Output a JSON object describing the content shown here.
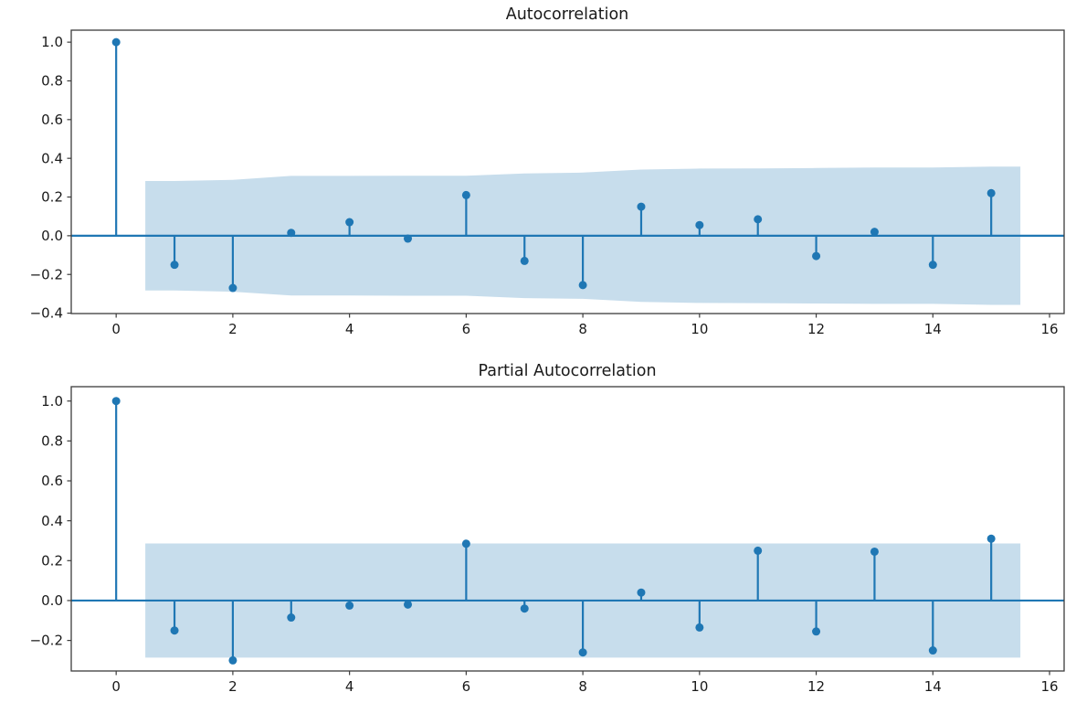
{
  "figure": {
    "kind": "statsmodels ACF/PACF stem plots, 2 stacked subplots"
  },
  "style": {
    "background": "#ffffff",
    "stem_color": "#1f77b4",
    "marker_color": "#1f77b4",
    "zero_line_color": "#1f77b4",
    "band_fill": "rgba(31,119,180,0.25)",
    "spine_color": "#3c3c3c",
    "tick_color": "#3c3c3c",
    "text_color": "#1a1a1a"
  },
  "chart_data": [
    {
      "type": "stem",
      "title": "Autocorrelation",
      "xlabel": "",
      "ylabel": "",
      "grid": false,
      "legend": null,
      "x": [
        0,
        1,
        2,
        3,
        4,
        5,
        6,
        7,
        8,
        9,
        10,
        11,
        12,
        13,
        14,
        15
      ],
      "values": [
        1.0,
        -0.15,
        -0.27,
        0.015,
        0.07,
        -0.015,
        0.21,
        -0.13,
        -0.255,
        0.15,
        0.055,
        0.085,
        -0.105,
        0.02,
        -0.15,
        0.22
      ],
      "conf_band": {
        "note": "shaded confidence interval, symmetric about zero, widens with lag",
        "x": [
          0.5,
          1,
          2,
          3,
          4,
          5,
          6,
          7,
          8,
          9,
          10,
          11,
          12,
          13,
          14,
          15,
          15.5
        ],
        "upper": [
          0.283,
          0.283,
          0.289,
          0.309,
          0.309,
          0.31,
          0.31,
          0.322,
          0.326,
          0.342,
          0.347,
          0.348,
          0.35,
          0.352,
          0.352,
          0.357,
          0.357
        ],
        "lower": [
          -0.283,
          -0.283,
          -0.289,
          -0.309,
          -0.309,
          -0.31,
          -0.31,
          -0.322,
          -0.326,
          -0.342,
          -0.347,
          -0.348,
          -0.35,
          -0.352,
          -0.352,
          -0.357,
          -0.357
        ]
      },
      "xlim": [
        -0.77,
        16.25
      ],
      "ylim": [
        -0.402,
        1.062
      ],
      "xticks": [
        0,
        2,
        4,
        6,
        8,
        10,
        12,
        14,
        16
      ],
      "xticklabels": [
        "0",
        "2",
        "4",
        "6",
        "8",
        "10",
        "12",
        "14",
        "16"
      ],
      "yticks": [
        1.0,
        0.8,
        0.6,
        0.4,
        0.2,
        0.0,
        -0.2,
        -0.4
      ],
      "yticklabels": [
        "1.0",
        "0.8",
        "0.6",
        "0.4",
        "0.2",
        "0.0",
        "−0.2",
        "−0.4"
      ]
    },
    {
      "type": "stem",
      "title": "Partial Autocorrelation",
      "xlabel": "",
      "ylabel": "",
      "grid": false,
      "legend": null,
      "x": [
        0,
        1,
        2,
        3,
        4,
        5,
        6,
        7,
        8,
        9,
        10,
        11,
        12,
        13,
        14,
        15
      ],
      "values": [
        1.0,
        -0.15,
        -0.3,
        -0.085,
        -0.025,
        -0.02,
        0.285,
        -0.04,
        -0.26,
        0.04,
        -0.135,
        0.25,
        -0.155,
        0.245,
        -0.25,
        0.31
      ],
      "conf_band": {
        "note": "constant-width shaded confidence interval, symmetric about zero",
        "x": [
          0.5,
          15.5
        ],
        "upper": [
          0.286,
          0.286
        ],
        "lower": [
          -0.286,
          -0.286
        ]
      },
      "xlim": [
        -0.77,
        16.25
      ],
      "ylim": [
        -0.353,
        1.072
      ],
      "xticks": [
        0,
        2,
        4,
        6,
        8,
        10,
        12,
        14,
        16
      ],
      "xticklabels": [
        "0",
        "2",
        "4",
        "6",
        "8",
        "10",
        "12",
        "14",
        "16"
      ],
      "yticks": [
        1.0,
        0.8,
        0.6,
        0.4,
        0.2,
        0.0,
        -0.2
      ],
      "yticklabels": [
        "1.0",
        "0.8",
        "0.6",
        "0.4",
        "0.2",
        "0.0",
        "−0.2"
      ]
    }
  ]
}
